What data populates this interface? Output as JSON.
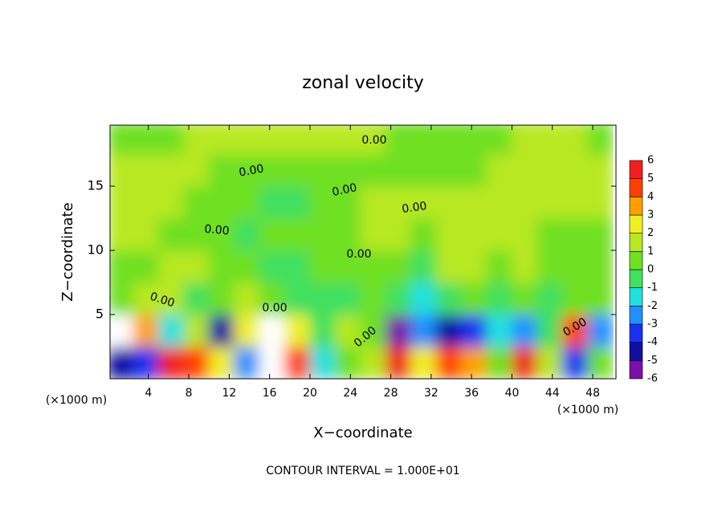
{
  "chart_data": {
    "type": "contour",
    "title": "zonal velocity",
    "x_label": "X−coordinate",
    "y_label": "Z−coordinate",
    "x_unit_left": "(×1000 m)",
    "x_unit_right": "(×1000 m)",
    "annotation": "CONTOUR INTERVAL = 1.000E+01",
    "contour_labels": [
      "0.00",
      "0.00",
      "0.00",
      "0.00",
      "0.00",
      "0.00",
      "0.00",
      "0.00",
      "0.00",
      "0.00"
    ],
    "xlim": [
      0.2,
      50.3
    ],
    "ylim": [
      0,
      19.75
    ],
    "xticks": [
      4,
      8,
      12,
      16,
      20,
      24,
      28,
      32,
      36,
      40,
      44,
      48
    ],
    "yticks": [
      5,
      10,
      15
    ],
    "x": [
      1.25,
      3.75,
      6.25,
      8.75,
      11.25,
      13.75,
      16.25,
      18.75,
      21.25,
      23.75,
      26.25,
      28.75,
      31.25,
      33.75,
      36.25,
      38.75,
      41.25,
      43.75,
      46.25,
      48.75
    ],
    "y": [
      1.25,
      3.75,
      6.25,
      8.75,
      11.25,
      13.75,
      16.25,
      18.75
    ],
    "z": [
      [
        -5,
        -4,
        5,
        4,
        2,
        -3,
        7,
        4,
        -2,
        0,
        1,
        6,
        2,
        4,
        3,
        0,
        5,
        1,
        -4,
        0
      ],
      [
        7,
        3,
        -2,
        1,
        -5,
        2,
        7,
        2,
        -1,
        1,
        0,
        -6,
        -3,
        -5,
        -4,
        -2,
        -3,
        -1,
        4,
        -3
      ],
      [
        0,
        1,
        1,
        -1,
        0,
        1,
        0,
        -1,
        -1,
        -1,
        0,
        -1,
        -2,
        -1,
        0,
        -1,
        0,
        -1,
        0,
        0
      ],
      [
        0,
        0,
        1,
        1,
        0,
        0,
        -1,
        -1,
        0,
        0,
        0,
        0,
        -1,
        1,
        1,
        0,
        1,
        0,
        0,
        0
      ],
      [
        1,
        1,
        0,
        0,
        0,
        -1,
        0,
        0,
        0,
        0,
        1,
        1,
        0,
        1,
        1,
        1,
        1,
        0,
        0,
        0
      ],
      [
        1,
        1,
        1,
        0,
        0,
        0,
        -1,
        -1,
        0,
        0,
        1,
        1,
        1,
        1,
        1,
        1,
        1,
        1,
        1,
        1
      ],
      [
        1,
        1,
        1,
        1,
        0,
        0,
        0,
        0,
        0,
        0,
        0,
        0,
        0,
        0,
        0,
        1,
        1,
        1,
        1,
        1
      ],
      [
        0,
        0,
        0,
        1,
        1,
        1,
        1,
        1,
        1,
        1,
        1,
        0,
        0,
        0,
        0,
        0,
        1,
        1,
        1,
        0
      ]
    ],
    "colorbar_levels": [
      -6,
      -5,
      -4,
      -3,
      -2,
      -1,
      0,
      1,
      2,
      3,
      4,
      5,
      6
    ],
    "colorbar_colors": [
      "#7a10a8",
      "#1010a0",
      "#1a30f0",
      "#2090ff",
      "#20e0e0",
      "#40e060",
      "#70e020",
      "#b8e820",
      "#f0f020",
      "#ffa000",
      "#ff4000",
      "#f02020"
    ],
    "over_color": "#ffffff"
  }
}
